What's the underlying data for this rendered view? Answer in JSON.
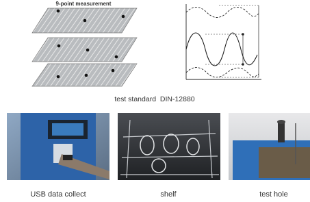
{
  "diagram": {
    "title": "9-point measurement"
  },
  "caption": "test standard  DIN-12880",
  "photos": [
    {
      "label": "USB data collect"
    },
    {
      "label": "shelf"
    },
    {
      "label": "test hole"
    }
  ]
}
